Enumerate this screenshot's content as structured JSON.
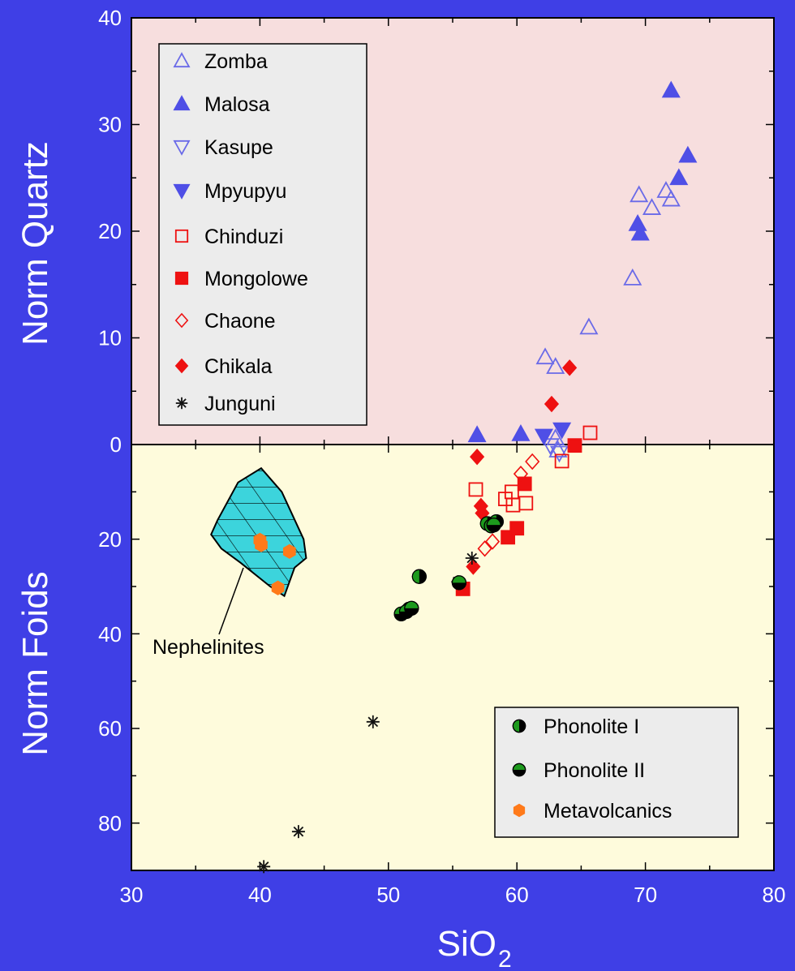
{
  "chart_data": {
    "type": "scatter",
    "x_axis": {
      "label": "SiO",
      "label_subscript": "2",
      "range": [
        30,
        80
      ],
      "ticks": [
        "30",
        "40",
        "50",
        "60",
        "70",
        "80"
      ]
    },
    "upper_y_axis": {
      "label": "Norm Quartz",
      "range": [
        0,
        40
      ],
      "ticks": [
        "0",
        "10",
        "20",
        "30",
        "40"
      ]
    },
    "lower_y_axis": {
      "label": "Norm Foids",
      "range": [
        0,
        90
      ],
      "reversed": true,
      "ticks": [
        "20",
        "40",
        "60",
        "80"
      ]
    },
    "grid": false,
    "colors": {
      "background": "#3f3fe6",
      "upper_panel": "#f7dede",
      "lower_panel": "#fefbdc",
      "blue_marker": "#4f4fe6",
      "red_marker": "#ee1111",
      "orange_marker": "#ff7a1a",
      "field_fill": "#3cd4dc"
    },
    "series": [
      {
        "name": "Zomba",
        "marker": "triangle-up-open",
        "color": "#6a6ae8",
        "panel": "quartz",
        "points": [
          [
            62.2,
            8.2
          ],
          [
            63.0,
            7.3
          ],
          [
            65.6,
            11.0
          ],
          [
            69.0,
            15.6
          ],
          [
            69.5,
            23.4
          ],
          [
            70.5,
            22.2
          ],
          [
            71.6,
            23.8
          ],
          [
            72.0,
            23.0
          ],
          [
            63.0,
            0.6
          ],
          [
            63.2,
            -1.2
          ]
        ]
      },
      {
        "name": "Malosa",
        "marker": "triangle-up-filled",
        "color": "#4f4fe6",
        "panel": "quartz",
        "points": [
          [
            56.9,
            0.9
          ],
          [
            60.3,
            1.0
          ],
          [
            69.4,
            20.7
          ],
          [
            69.6,
            19.8
          ],
          [
            72.0,
            33.2
          ],
          [
            72.6,
            25.0
          ],
          [
            73.3,
            27.1
          ]
        ]
      },
      {
        "name": "Kasupe",
        "marker": "triangle-down-open",
        "color": "#6a6ae8",
        "panel": "quartz",
        "points": [
          [
            62.6,
            -0.2
          ],
          [
            63.3,
            -1.8
          ]
        ]
      },
      {
        "name": "Mpyupyu",
        "marker": "triangle-down-filled",
        "color": "#4f4fe6",
        "panel": "quartz",
        "points": [
          [
            62.1,
            0.8
          ],
          [
            63.5,
            1.4
          ]
        ]
      },
      {
        "name": "Chinduzi",
        "marker": "square-open",
        "color": "#ee1111",
        "panel": "foids",
        "points": [
          [
            56.8,
            9.5
          ],
          [
            59.1,
            11.5
          ],
          [
            59.6,
            10.0
          ],
          [
            59.7,
            12.8
          ],
          [
            60.7,
            12.4
          ],
          [
            63.5,
            3.5
          ],
          [
            65.7,
            -1.1
          ]
        ]
      },
      {
        "name": "Mongolowe",
        "marker": "square-filled",
        "color": "#ee1111",
        "panel": "foids",
        "points": [
          [
            55.8,
            30.5
          ],
          [
            59.3,
            19.6
          ],
          [
            60.0,
            17.7
          ],
          [
            60.6,
            8.3
          ],
          [
            64.5,
            0.2
          ]
        ]
      },
      {
        "name": "Chaone",
        "marker": "diamond-open",
        "color": "#ee1111",
        "panel": "foids",
        "points": [
          [
            57.5,
            22.0
          ],
          [
            58.1,
            20.5
          ],
          [
            60.3,
            6.2
          ],
          [
            61.2,
            3.6
          ]
        ]
      },
      {
        "name": "Chikala",
        "marker": "diamond-filled",
        "color": "#ee1111",
        "panel": "foids",
        "points": [
          [
            56.9,
            2.6
          ],
          [
            56.6,
            25.8
          ],
          [
            57.2,
            13.0
          ],
          [
            57.3,
            14.5
          ],
          [
            62.7,
            -3.8
          ],
          [
            64.1,
            -7.2
          ]
        ]
      },
      {
        "name": "Junguni",
        "marker": "asterisk",
        "color": "#111111",
        "panel": "foids",
        "points": [
          [
            40.3,
            89.2
          ],
          [
            43.0,
            81.8
          ],
          [
            48.8,
            58.6
          ],
          [
            55.4,
            29.0
          ],
          [
            56.5,
            24.0
          ]
        ]
      },
      {
        "name": "Phonolite I",
        "marker": "circle-half-left",
        "color": "#1d9a1d",
        "panel": "foids",
        "points": [
          [
            51.6,
            34.8
          ],
          [
            52.4,
            27.9
          ],
          [
            57.7,
            16.7
          ],
          [
            58.0,
            17.2
          ],
          [
            58.4,
            16.3
          ]
        ]
      },
      {
        "name": "Phonolite II",
        "marker": "circle-half-bottom",
        "color": "#1d9a1d",
        "panel": "foids",
        "points": [
          [
            51.0,
            35.8
          ],
          [
            51.4,
            35.3
          ],
          [
            51.8,
            34.6
          ],
          [
            55.5,
            29.2
          ],
          [
            58.2,
            17.0
          ]
        ]
      },
      {
        "name": "Metavolcanics",
        "marker": "hexagon-filled",
        "color": "#ff7a1a",
        "panel": "foids",
        "points": [
          [
            40.0,
            20.2
          ],
          [
            40.1,
            21.2
          ],
          [
            42.3,
            22.6
          ],
          [
            41.4,
            30.3
          ]
        ]
      }
    ],
    "annotations": [
      {
        "text": "Nephelinites"
      }
    ],
    "legends": [
      {
        "placement": "top-left",
        "entries": [
          "Zomba",
          "Malosa",
          "Kasupe",
          "Mpyupyu",
          "Chinduzi",
          "Mongolowe",
          "Chaone",
          "Chikala",
          "Junguni"
        ]
      },
      {
        "placement": "bottom-right",
        "entries": [
          "Phonolite I",
          "Phonolite II",
          "Metavolcanics"
        ]
      }
    ],
    "nephelinite_field": [
      [
        38.3,
        -8
      ],
      [
        40.1,
        -5
      ],
      [
        41.7,
        -10
      ],
      [
        43.4,
        -20
      ],
      [
        43.6,
        -24
      ],
      [
        42.7,
        -26
      ],
      [
        41.9,
        -32
      ],
      [
        40.8,
        -30
      ],
      [
        38.5,
        -25
      ],
      [
        37.0,
        -22
      ],
      [
        36.2,
        -19
      ],
      [
        36.7,
        -16
      ]
    ]
  }
}
